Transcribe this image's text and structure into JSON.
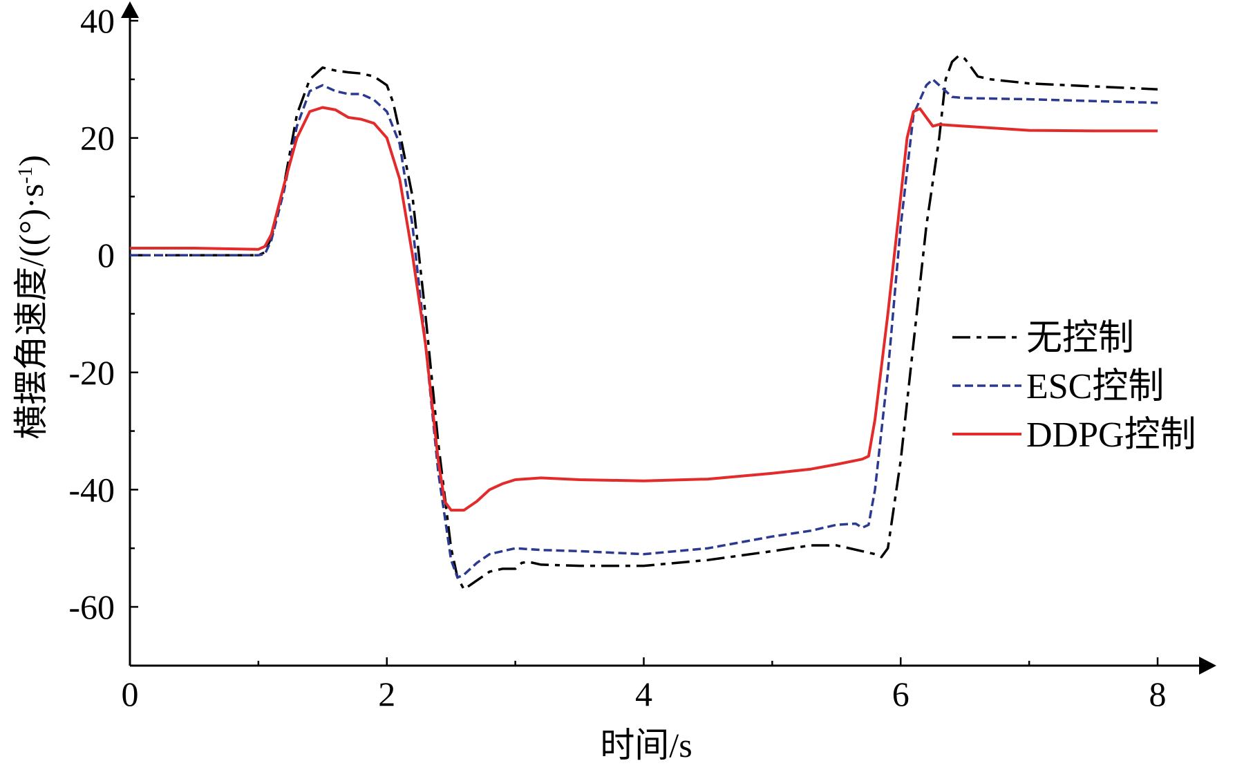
{
  "chart_data": {
    "type": "line",
    "title": "",
    "xlabel": "时间/s",
    "ylabel_main": "横摆角速度/((°)·s",
    "ylabel_sup": "-1",
    "ylabel_close": ")",
    "xlim": [
      0,
      8.2
    ],
    "ylim": [
      -70,
      40
    ],
    "xticks": [
      0,
      2,
      4,
      6,
      8
    ],
    "xtick_labels": [
      "0",
      "2",
      "4",
      "6",
      "8"
    ],
    "yticks": [
      40,
      20,
      0,
      -20,
      -40,
      -60
    ],
    "ytick_labels": [
      "40",
      "20",
      "0",
      "-20",
      "-40",
      "-60"
    ],
    "grid": false,
    "legend_position": "right",
    "series": [
      {
        "name": "无控制",
        "color": "#000000",
        "style": "dashdot",
        "points": [
          [
            0,
            0
          ],
          [
            0.5,
            0
          ],
          [
            1.0,
            0
          ],
          [
            1.05,
            0.5
          ],
          [
            1.1,
            3
          ],
          [
            1.2,
            12
          ],
          [
            1.3,
            24
          ],
          [
            1.4,
            30
          ],
          [
            1.5,
            32
          ],
          [
            1.6,
            31.5
          ],
          [
            1.7,
            31.2
          ],
          [
            1.8,
            31
          ],
          [
            1.9,
            30.5
          ],
          [
            2.0,
            29
          ],
          [
            2.05,
            26
          ],
          [
            2.1,
            21
          ],
          [
            2.2,
            10
          ],
          [
            2.3,
            -10
          ],
          [
            2.4,
            -32
          ],
          [
            2.5,
            -50
          ],
          [
            2.55,
            -55
          ],
          [
            2.6,
            -57
          ],
          [
            2.7,
            -55.5
          ],
          [
            2.8,
            -54
          ],
          [
            2.9,
            -53.5
          ],
          [
            3.0,
            -53.5
          ],
          [
            3.05,
            -52.5
          ],
          [
            3.1,
            -52.3
          ],
          [
            3.2,
            -52.8
          ],
          [
            3.5,
            -53
          ],
          [
            4.0,
            -53
          ],
          [
            4.5,
            -52
          ],
          [
            5.0,
            -50.5
          ],
          [
            5.3,
            -49.5
          ],
          [
            5.5,
            -49.5
          ],
          [
            5.7,
            -50.5
          ],
          [
            5.8,
            -51
          ],
          [
            5.85,
            -51.5
          ],
          [
            5.9,
            -50
          ],
          [
            6.0,
            -35
          ],
          [
            6.1,
            -15
          ],
          [
            6.2,
            5
          ],
          [
            6.3,
            20
          ],
          [
            6.35,
            30
          ],
          [
            6.4,
            33
          ],
          [
            6.45,
            34
          ],
          [
            6.5,
            33.5
          ],
          [
            6.55,
            32
          ],
          [
            6.6,
            30.5
          ],
          [
            6.7,
            30
          ],
          [
            7.0,
            29.3
          ],
          [
            7.5,
            28.8
          ],
          [
            8.0,
            28.3
          ]
        ]
      },
      {
        "name": "ESC控制",
        "color": "#2b3990",
        "style": "dashed",
        "points": [
          [
            0,
            0
          ],
          [
            0.5,
            0
          ],
          [
            1.0,
            0
          ],
          [
            1.05,
            0.2
          ],
          [
            1.1,
            2.5
          ],
          [
            1.2,
            11
          ],
          [
            1.3,
            22
          ],
          [
            1.4,
            28
          ],
          [
            1.5,
            29
          ],
          [
            1.6,
            28
          ],
          [
            1.7,
            27.5
          ],
          [
            1.8,
            27.5
          ],
          [
            1.9,
            26.5
          ],
          [
            2.0,
            24.5
          ],
          [
            2.1,
            19
          ],
          [
            2.2,
            5
          ],
          [
            2.3,
            -15
          ],
          [
            2.4,
            -37
          ],
          [
            2.5,
            -52
          ],
          [
            2.55,
            -55
          ],
          [
            2.6,
            -54.5
          ],
          [
            2.7,
            -52.5
          ],
          [
            2.8,
            -51
          ],
          [
            2.9,
            -50.5
          ],
          [
            3.0,
            -50
          ],
          [
            3.2,
            -50.3
          ],
          [
            3.5,
            -50.5
          ],
          [
            4.0,
            -51
          ],
          [
            4.5,
            -50
          ],
          [
            5.0,
            -48
          ],
          [
            5.3,
            -47
          ],
          [
            5.5,
            -46
          ],
          [
            5.65,
            -45.8
          ],
          [
            5.7,
            -46.5
          ],
          [
            5.75,
            -46
          ],
          [
            5.8,
            -40
          ],
          [
            5.9,
            -20
          ],
          [
            6.0,
            5
          ],
          [
            6.1,
            24
          ],
          [
            6.2,
            29
          ],
          [
            6.25,
            30
          ],
          [
            6.3,
            29
          ],
          [
            6.35,
            28
          ],
          [
            6.4,
            27
          ],
          [
            6.5,
            26.8
          ],
          [
            7.0,
            26.6
          ],
          [
            7.5,
            26.3
          ],
          [
            8.0,
            26
          ]
        ]
      },
      {
        "name": "DDPG控制",
        "color": "#e32b2b",
        "style": "solid",
        "points": [
          [
            0,
            1.2
          ],
          [
            0.5,
            1.2
          ],
          [
            1.0,
            1.0
          ],
          [
            1.05,
            1.5
          ],
          [
            1.1,
            3.5
          ],
          [
            1.2,
            12
          ],
          [
            1.3,
            20
          ],
          [
            1.4,
            24.5
          ],
          [
            1.5,
            25.2
          ],
          [
            1.6,
            24.8
          ],
          [
            1.7,
            23.5
          ],
          [
            1.8,
            23.2
          ],
          [
            1.9,
            22.5
          ],
          [
            2.0,
            20
          ],
          [
            2.1,
            13
          ],
          [
            2.2,
            0
          ],
          [
            2.3,
            -15
          ],
          [
            2.35,
            -25
          ],
          [
            2.4,
            -35
          ],
          [
            2.45,
            -42
          ],
          [
            2.5,
            -43.5
          ],
          [
            2.6,
            -43.5
          ],
          [
            2.7,
            -42
          ],
          [
            2.8,
            -40
          ],
          [
            2.9,
            -39
          ],
          [
            3.0,
            -38.3
          ],
          [
            3.2,
            -38
          ],
          [
            3.5,
            -38.3
          ],
          [
            4.0,
            -38.5
          ],
          [
            4.5,
            -38.2
          ],
          [
            5.0,
            -37.2
          ],
          [
            5.3,
            -36.5
          ],
          [
            5.5,
            -35.7
          ],
          [
            5.7,
            -34.8
          ],
          [
            5.75,
            -34.3
          ],
          [
            5.8,
            -28
          ],
          [
            5.9,
            -10
          ],
          [
            6.0,
            10
          ],
          [
            6.05,
            20
          ],
          [
            6.1,
            24.5
          ],
          [
            6.15,
            25
          ],
          [
            6.2,
            23.5
          ],
          [
            6.25,
            22
          ],
          [
            6.3,
            22.3
          ],
          [
            6.5,
            22
          ],
          [
            7.0,
            21.3
          ],
          [
            7.5,
            21.2
          ],
          [
            8.0,
            21.2
          ]
        ]
      }
    ]
  }
}
